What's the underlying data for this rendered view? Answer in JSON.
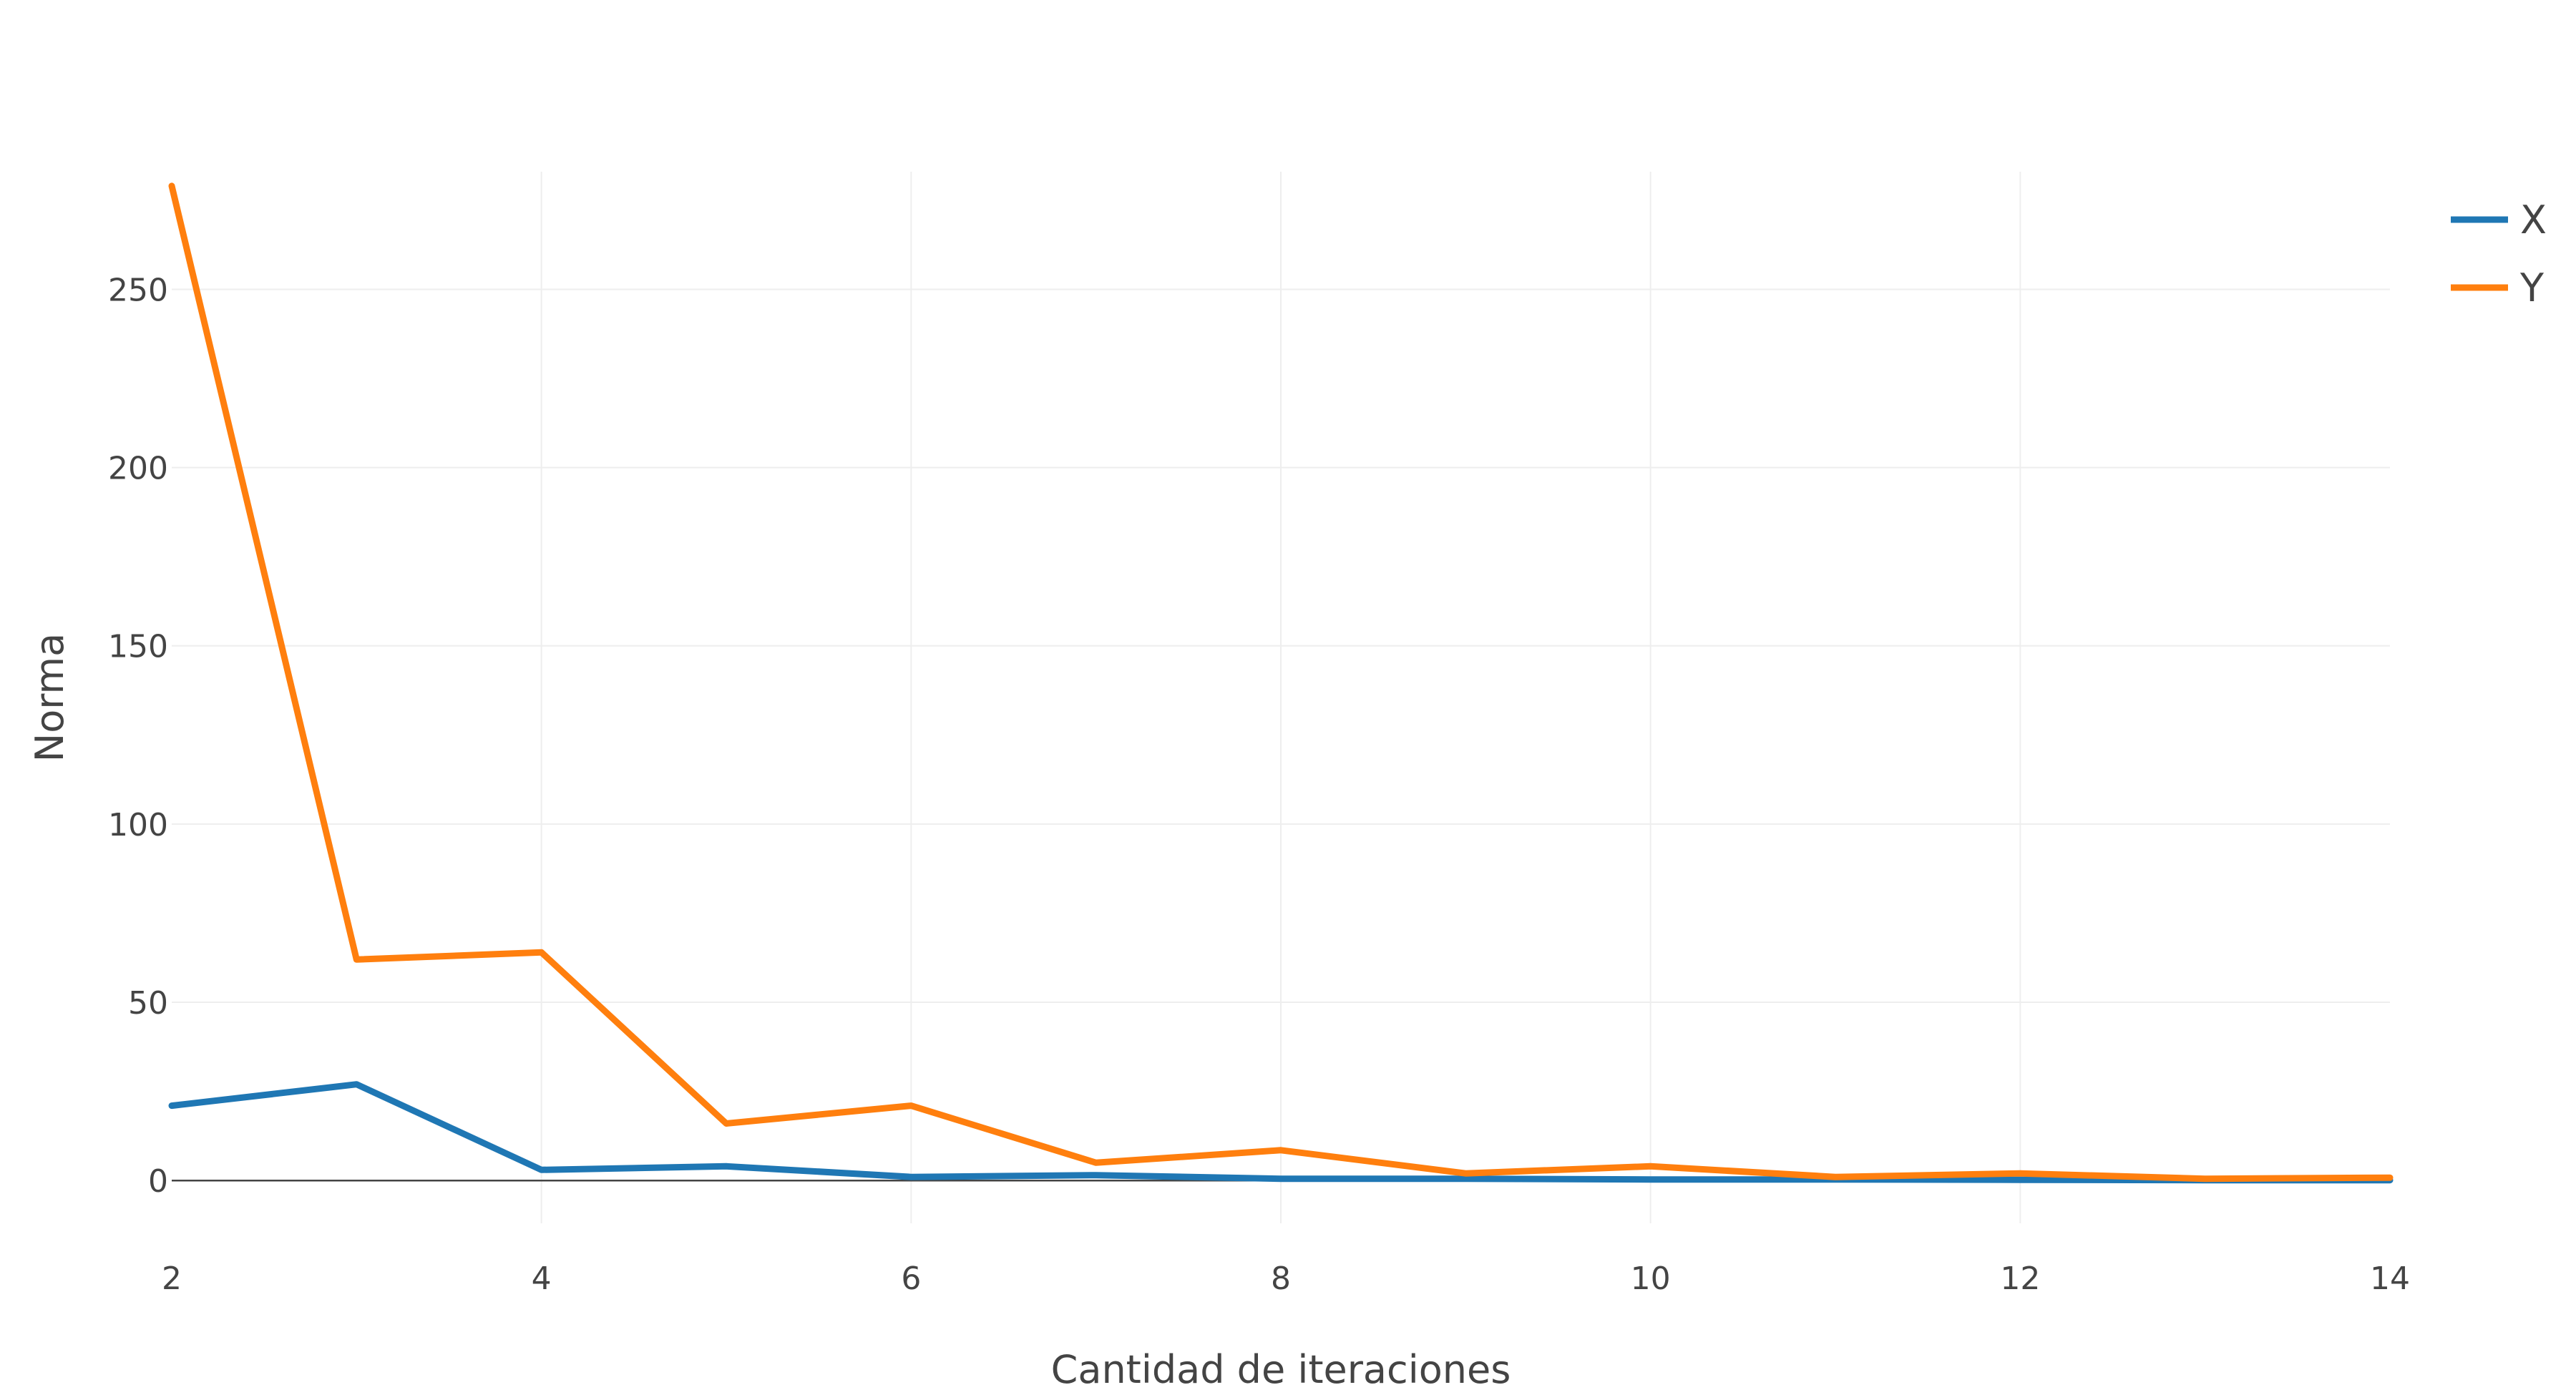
{
  "chart_data": {
    "type": "line",
    "title": "",
    "xlabel": "Cantidad de iteraciones",
    "ylabel": "Norma",
    "xlim": [
      2,
      14
    ],
    "ylim": [
      -12,
      283
    ],
    "x_ticks": [
      2,
      4,
      6,
      8,
      10,
      12,
      14
    ],
    "y_ticks": [
      0,
      50,
      100,
      150,
      200,
      250
    ],
    "grid": true,
    "legend_position": "top-right",
    "x": [
      2,
      3,
      4,
      5,
      6,
      7,
      8,
      9,
      10,
      11,
      12,
      13,
      14
    ],
    "series": [
      {
        "name": "X",
        "color": "#1f77b4",
        "values": [
          21,
          27,
          3,
          4,
          1,
          1.5,
          0.5,
          0.5,
          0.3,
          0.3,
          0.2,
          0.1,
          0.1
        ]
      },
      {
        "name": "Y",
        "color": "#ff7f0e",
        "values": [
          279,
          62,
          64,
          16,
          21,
          5,
          8.5,
          2,
          4,
          1,
          2,
          0.5,
          0.8
        ]
      }
    ]
  }
}
